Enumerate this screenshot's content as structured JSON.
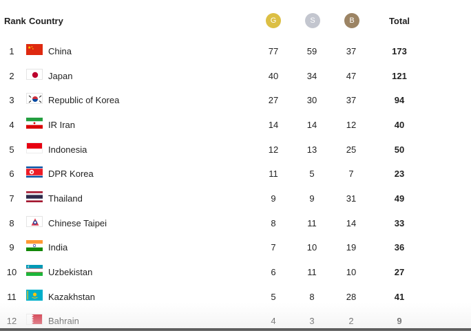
{
  "header": {
    "rank_label": "Rank",
    "country_label": "Country",
    "gold_label": "G",
    "silver_label": "S",
    "bronze_label": "B",
    "total_label": "Total"
  },
  "colors": {
    "gold": "#dcbf44",
    "silver": "#c3c6cf",
    "bronze": "#9c8464",
    "text": "#222222"
  },
  "rows": [
    {
      "rank": "1",
      "country": "China",
      "flag": "china-flag-icon",
      "gold": "77",
      "silver": "59",
      "bronze": "37",
      "total": "173"
    },
    {
      "rank": "2",
      "country": "Japan",
      "flag": "japan-flag-icon",
      "gold": "40",
      "silver": "34",
      "bronze": "47",
      "total": "121"
    },
    {
      "rank": "3",
      "country": "Republic of Korea",
      "flag": "korea-flag-icon",
      "gold": "27",
      "silver": "30",
      "bronze": "37",
      "total": "94"
    },
    {
      "rank": "4",
      "country": "IR Iran",
      "flag": "iran-flag-icon",
      "gold": "14",
      "silver": "14",
      "bronze": "12",
      "total": "40"
    },
    {
      "rank": "5",
      "country": "Indonesia",
      "flag": "indonesia-flag-icon",
      "gold": "12",
      "silver": "13",
      "bronze": "25",
      "total": "50"
    },
    {
      "rank": "6",
      "country": "DPR Korea",
      "flag": "dpr-korea-flag-icon",
      "gold": "11",
      "silver": "5",
      "bronze": "7",
      "total": "23"
    },
    {
      "rank": "7",
      "country": "Thailand",
      "flag": "thailand-flag-icon",
      "gold": "9",
      "silver": "9",
      "bronze": "31",
      "total": "49"
    },
    {
      "rank": "8",
      "country": "Chinese Taipei",
      "flag": "chinese-taipei-flag-icon",
      "gold": "8",
      "silver": "11",
      "bronze": "14",
      "total": "33"
    },
    {
      "rank": "9",
      "country": "India",
      "flag": "india-flag-icon",
      "gold": "7",
      "silver": "10",
      "bronze": "19",
      "total": "36"
    },
    {
      "rank": "10",
      "country": "Uzbekistan",
      "flag": "uzbekistan-flag-icon",
      "gold": "6",
      "silver": "11",
      "bronze": "10",
      "total": "27"
    },
    {
      "rank": "11",
      "country": "Kazakhstan",
      "flag": "kazakhstan-flag-icon",
      "gold": "5",
      "silver": "8",
      "bronze": "28",
      "total": "41"
    },
    {
      "rank": "12",
      "country": "Bahrain",
      "flag": "bahrain-flag-icon",
      "gold": "4",
      "silver": "3",
      "bronze": "2",
      "total": "9"
    }
  ]
}
